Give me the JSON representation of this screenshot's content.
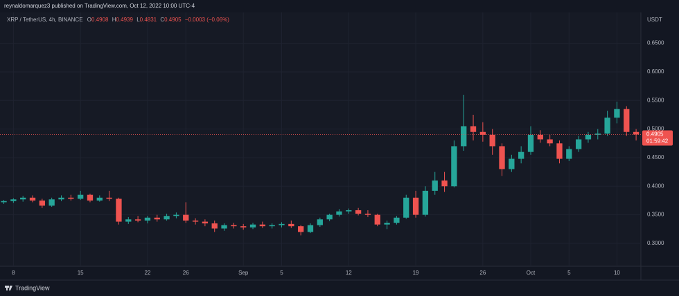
{
  "header": {
    "published": "reynaldomarquez3 published on TradingView.com, Oct 12, 2022 10:00 UTC-4"
  },
  "footer": {
    "brand": "TradingView"
  },
  "chart_data": {
    "type": "candlestick",
    "legend": {
      "symbol": "XRP / TetherUS, 4h, BINANCE",
      "ohlc_labels": [
        "O",
        "H",
        "L",
        "C"
      ],
      "ohlc_values": [
        "0.4908",
        "0.4939",
        "0.4831",
        "0.4905"
      ],
      "change": "−0.0003 (−0.06%)"
    },
    "y_axis_label": "USDT",
    "up_color": "#26a69a",
    "down_color": "#ef5350",
    "last_price": {
      "value": 0.4905,
      "label": "0.4905"
    },
    "countdown": "01:59:42",
    "xlim": [
      6.6,
      73.5
    ],
    "ylim": [
      0.26,
      0.704
    ],
    "xticks": [
      {
        "value": 8,
        "label": "8"
      },
      {
        "value": 15,
        "label": "15"
      },
      {
        "value": 22,
        "label": "22"
      },
      {
        "value": 26,
        "label": "26"
      },
      {
        "value": 32,
        "label": "Sep"
      },
      {
        "value": 36,
        "label": "5"
      },
      {
        "value": 43,
        "label": "12"
      },
      {
        "value": 50,
        "label": "19"
      },
      {
        "value": 57,
        "label": "26"
      },
      {
        "value": 62,
        "label": "Oct"
      },
      {
        "value": 66,
        "label": "5"
      },
      {
        "value": 71,
        "label": "10"
      }
    ],
    "yticks": [
      {
        "value": 0.3,
        "label": "0.3000"
      },
      {
        "value": 0.35,
        "label": "0.3500"
      },
      {
        "value": 0.4,
        "label": "0.4000"
      },
      {
        "value": 0.45,
        "label": "0.4500"
      },
      {
        "value": 0.5,
        "label": "0.5000"
      },
      {
        "value": 0.55,
        "label": "0.5500"
      },
      {
        "value": 0.6,
        "label": "0.6000"
      },
      {
        "value": 0.65,
        "label": "0.6500"
      }
    ],
    "grid": true,
    "x": [
      7,
      8,
      9,
      10,
      11,
      12,
      13,
      14,
      15,
      16,
      17,
      18,
      19,
      20,
      21,
      22,
      23,
      24,
      25,
      26,
      27,
      28,
      29,
      30,
      31,
      32,
      33,
      34,
      35,
      36,
      37,
      38,
      39,
      40,
      41,
      42,
      43,
      44,
      45,
      46,
      47,
      48,
      49,
      50,
      51,
      52,
      53,
      54,
      55,
      56,
      57,
      58,
      59,
      60,
      61,
      62,
      63,
      64,
      65,
      66,
      67,
      68,
      69,
      70,
      71,
      72,
      73
    ],
    "open": [
      0.372,
      0.374,
      0.377,
      0.38,
      0.375,
      0.366,
      0.377,
      0.38,
      0.378,
      0.385,
      0.375,
      0.38,
      0.378,
      0.338,
      0.342,
      0.34,
      0.345,
      0.342,
      0.348,
      0.35,
      0.34,
      0.338,
      0.335,
      0.326,
      0.332,
      0.33,
      0.328,
      0.333,
      0.33,
      0.332,
      0.334,
      0.33,
      0.32,
      0.332,
      0.342,
      0.35,
      0.356,
      0.358,
      0.352,
      0.35,
      0.333,
      0.336,
      0.345,
      0.38,
      0.35,
      0.392,
      0.41,
      0.4,
      0.47,
      0.505,
      0.495,
      0.49,
      0.47,
      0.43,
      0.448,
      0.46,
      0.49,
      0.482,
      0.475,
      0.448,
      0.465,
      0.482,
      0.49,
      0.492,
      0.52,
      0.535,
      0.495
    ],
    "high": [
      0.376,
      0.379,
      0.383,
      0.384,
      0.378,
      0.38,
      0.384,
      0.385,
      0.392,
      0.387,
      0.384,
      0.392,
      0.38,
      0.346,
      0.348,
      0.348,
      0.35,
      0.352,
      0.354,
      0.372,
      0.344,
      0.342,
      0.34,
      0.335,
      0.336,
      0.334,
      0.336,
      0.338,
      0.335,
      0.337,
      0.34,
      0.332,
      0.335,
      0.345,
      0.352,
      0.36,
      0.361,
      0.362,
      0.358,
      0.352,
      0.34,
      0.348,
      0.385,
      0.392,
      0.4,
      0.425,
      0.425,
      0.48,
      0.56,
      0.525,
      0.512,
      0.5,
      0.475,
      0.455,
      0.47,
      0.505,
      0.498,
      0.49,
      0.48,
      0.47,
      0.488,
      0.495,
      0.5,
      0.532,
      0.548,
      0.54,
      0.5
    ],
    "low": [
      0.369,
      0.371,
      0.373,
      0.372,
      0.362,
      0.364,
      0.374,
      0.375,
      0.376,
      0.372,
      0.373,
      0.374,
      0.333,
      0.334,
      0.337,
      0.335,
      0.338,
      0.34,
      0.344,
      0.336,
      0.333,
      0.33,
      0.32,
      0.322,
      0.326,
      0.324,
      0.325,
      0.327,
      0.326,
      0.328,
      0.327,
      0.314,
      0.318,
      0.329,
      0.339,
      0.347,
      0.352,
      0.349,
      0.346,
      0.33,
      0.325,
      0.333,
      0.343,
      0.345,
      0.347,
      0.385,
      0.39,
      0.398,
      0.462,
      0.48,
      0.478,
      0.455,
      0.418,
      0.425,
      0.44,
      0.455,
      0.476,
      0.47,
      0.44,
      0.444,
      0.46,
      0.476,
      0.482,
      0.488,
      0.51,
      0.488,
      0.48
    ],
    "close": [
      0.374,
      0.377,
      0.38,
      0.375,
      0.366,
      0.377,
      0.38,
      0.378,
      0.385,
      0.375,
      0.38,
      0.378,
      0.338,
      0.342,
      0.34,
      0.345,
      0.342,
      0.348,
      0.35,
      0.34,
      0.338,
      0.335,
      0.326,
      0.332,
      0.33,
      0.328,
      0.333,
      0.33,
      0.332,
      0.334,
      0.33,
      0.32,
      0.332,
      0.342,
      0.35,
      0.356,
      0.358,
      0.352,
      0.35,
      0.333,
      0.336,
      0.345,
      0.38,
      0.35,
      0.392,
      0.41,
      0.4,
      0.47,
      0.505,
      0.495,
      0.49,
      0.47,
      0.43,
      0.448,
      0.46,
      0.49,
      0.482,
      0.475,
      0.448,
      0.465,
      0.482,
      0.49,
      0.492,
      0.52,
      0.535,
      0.495,
      0.4905
    ]
  }
}
